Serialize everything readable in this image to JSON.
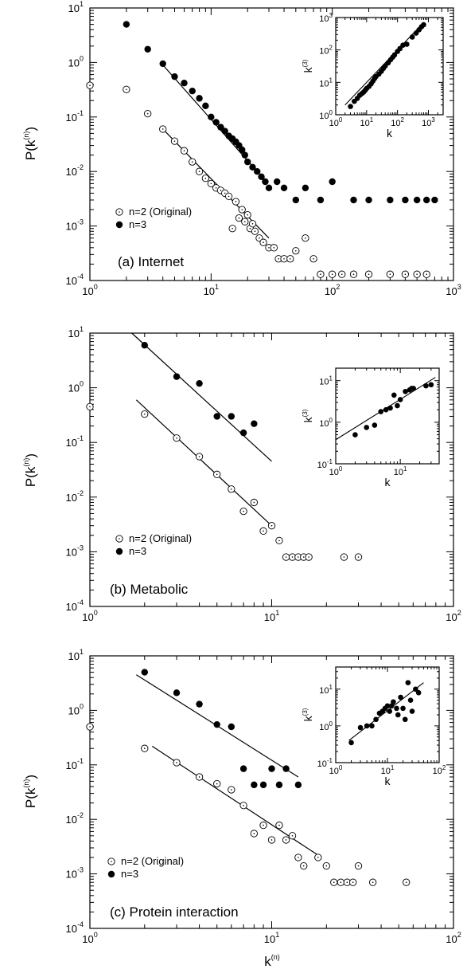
{
  "chart_data": [
    {
      "type": "scatter",
      "title": "(a) Internet",
      "xscale": "log",
      "yscale": "log",
      "xlim": [
        1,
        1000
      ],
      "ylim": [
        0.0001,
        10
      ],
      "xticks": [
        "10^0",
        "10^1",
        "10^2",
        "10^3"
      ],
      "yticks": [
        "10^-4",
        "10^-3",
        "10^-2",
        "10^-1",
        "10^0",
        "10^1"
      ],
      "ylabel": "P(k^(n))",
      "xlabel": "",
      "legend_position": "bottom-left",
      "series": [
        {
          "name": "n=2 (Original)",
          "marker": "open-circle",
          "x": [
            1,
            2,
            3,
            4,
            5,
            6,
            7,
            8,
            9,
            10,
            11,
            12,
            13,
            14,
            15,
            16,
            17,
            18,
            19,
            20,
            21,
            22,
            23,
            25,
            27,
            30,
            33,
            36,
            40,
            45,
            50,
            60,
            70,
            80,
            100,
            120,
            150,
            200,
            300,
            400,
            500,
            600
          ],
          "y": [
            0.38,
            0.32,
            0.115,
            0.06,
            0.036,
            0.024,
            0.015,
            0.01,
            0.0075,
            0.006,
            0.005,
            0.0045,
            0.004,
            0.0035,
            0.0009,
            0.0028,
            0.0014,
            0.002,
            0.0012,
            0.0016,
            0.0009,
            0.0011,
            0.0008,
            0.0006,
            0.0005,
            0.0004,
            0.0004,
            0.00025,
            0.00025,
            0.00025,
            0.00035,
            0.0006,
            0.00025,
            0.00013,
            0.00013,
            0.00013,
            0.00013,
            0.00013,
            0.00013,
            0.00013,
            0.00013,
            0.00013
          ]
        },
        {
          "name": "n=3",
          "marker": "filled-circle",
          "x": [
            2,
            3,
            4,
            5,
            6,
            7,
            8,
            9,
            10,
            11,
            12,
            13,
            14,
            15,
            16,
            17,
            18,
            19,
            20,
            22,
            24,
            26,
            28,
            30,
            35,
            40,
            50,
            60,
            80,
            100,
            150,
            200,
            300,
            400,
            500,
            600,
            700
          ],
          "y": [
            5.0,
            1.75,
            0.95,
            0.55,
            0.42,
            0.3,
            0.22,
            0.16,
            0.1,
            0.08,
            0.065,
            0.055,
            0.045,
            0.04,
            0.035,
            0.03,
            0.025,
            0.02,
            0.015,
            0.012,
            0.01,
            0.008,
            0.0065,
            0.005,
            0.0065,
            0.005,
            0.003,
            0.005,
            0.003,
            0.0065,
            0.003,
            0.003,
            0.003,
            0.003,
            0.003,
            0.003,
            0.003
          ]
        }
      ],
      "fit_lines": [
        {
          "x": [
            4,
            25
          ],
          "y": [
            0.9,
            0.009
          ]
        },
        {
          "x": [
            4,
            30
          ],
          "y": [
            0.06,
            0.0006
          ]
        }
      ],
      "inset": {
        "xscale": "log",
        "yscale": "log",
        "xlim": [
          1,
          3000
        ],
        "ylim": [
          1,
          1000
        ],
        "xticks": [
          "10^0",
          "10^1",
          "10^2",
          "10^3"
        ],
        "yticks": [
          "10^0",
          "10^1",
          "10^2",
          "10^3"
        ],
        "xlabel": "k",
        "ylabel": "k^(3)",
        "points": {
          "x": [
            3,
            4,
            5,
            6,
            7,
            8,
            9,
            10,
            12,
            14,
            16,
            18,
            20,
            25,
            30,
            35,
            40,
            50,
            60,
            70,
            80,
            100,
            120,
            150,
            200,
            300,
            400,
            500,
            600,
            700
          ],
          "y": [
            1.8,
            2.6,
            3.2,
            4,
            4.5,
            5,
            5.7,
            6.5,
            7.5,
            9,
            11,
            13,
            15,
            18,
            22,
            27,
            32,
            40,
            50,
            60,
            70,
            90,
            110,
            140,
            150,
            250,
            330,
            420,
            520,
            600
          ]
        },
        "fit_line": {
          "x": [
            2,
            600
          ],
          "y": [
            2,
            600
          ]
        }
      }
    },
    {
      "type": "scatter",
      "title": "(b) Metabolic",
      "xscale": "log",
      "yscale": "log",
      "xlim": [
        1,
        100
      ],
      "ylim": [
        0.0001,
        10
      ],
      "xticks": [
        "10^0",
        "10^1",
        "10^2"
      ],
      "yticks": [
        "10^-4",
        "10^-3",
        "10^-2",
        "10^-1",
        "10^0",
        "10^1"
      ],
      "ylabel": "P(k^(n))",
      "xlabel": "",
      "legend_position": "bottom-left",
      "series": [
        {
          "name": "n=2 (Original)",
          "marker": "open-circle",
          "x": [
            1,
            2,
            3,
            4,
            5,
            6,
            7,
            8,
            9,
            10,
            11,
            12,
            13,
            14,
            15,
            16,
            25,
            30
          ],
          "y": [
            0.45,
            0.33,
            0.12,
            0.055,
            0.026,
            0.014,
            0.0055,
            0.008,
            0.0024,
            0.003,
            0.0016,
            0.0008,
            0.0008,
            0.0008,
            0.0008,
            0.0008,
            0.0008,
            0.0008
          ]
        },
        {
          "name": "n=3",
          "marker": "filled-circle",
          "x": [
            2,
            3,
            4,
            5,
            6,
            7,
            8
          ],
          "y": [
            6.0,
            1.6,
            1.2,
            0.3,
            0.3,
            0.15,
            0.22
          ]
        }
      ],
      "fit_lines": [
        {
          "x": [
            1.7,
            10
          ],
          "y": [
            10,
            0.045
          ]
        },
        {
          "x": [
            1.8,
            10
          ],
          "y": [
            0.6,
            0.003
          ]
        }
      ],
      "inset": {
        "xscale": "log",
        "yscale": "log",
        "xlim": [
          1,
          40
        ],
        "ylim": [
          0.1,
          20
        ],
        "xticks": [
          "10^0",
          "10^1"
        ],
        "yticks": [
          "10^-1",
          "10^0",
          "10^1"
        ],
        "xlabel": "k",
        "ylabel": "k^(3)",
        "points": {
          "x": [
            2,
            3,
            4,
            5,
            6,
            7,
            8,
            9,
            10,
            12,
            14,
            15,
            16,
            25,
            30
          ],
          "y": [
            0.5,
            0.75,
            0.85,
            1.8,
            2.0,
            2.2,
            4.5,
            2.5,
            3.5,
            5.5,
            6.0,
            6.5,
            6.5,
            7.5,
            8.0
          ]
        },
        "fit_line": {
          "x": [
            1,
            35
          ],
          "y": [
            0.38,
            12
          ]
        }
      }
    },
    {
      "type": "scatter",
      "title": "(c) Protein interaction",
      "xscale": "log",
      "yscale": "log",
      "xlim": [
        1,
        100
      ],
      "ylim": [
        0.0001,
        10
      ],
      "xticks": [
        "10^0",
        "10^1",
        "10^2"
      ],
      "yticks": [
        "10^-4",
        "10^-3",
        "10^-2",
        "10^-1",
        "10^0",
        "10^1"
      ],
      "ylabel": "P(k^(n))",
      "xlabel": "k^(n)",
      "legend_position": "bottom-left",
      "series": [
        {
          "name": "n=2 (Original)",
          "marker": "open-circle",
          "x": [
            1,
            2,
            3,
            4,
            5,
            6,
            7,
            8,
            9,
            10,
            11,
            12,
            13,
            14,
            15,
            18,
            20,
            22,
            24,
            26,
            28,
            30,
            36,
            55
          ],
          "y": [
            0.5,
            0.2,
            0.11,
            0.06,
            0.045,
            0.035,
            0.018,
            0.0055,
            0.0078,
            0.0042,
            0.0078,
            0.0042,
            0.005,
            0.002,
            0.0014,
            0.002,
            0.0014,
            0.0007,
            0.0007,
            0.0007,
            0.0007,
            0.0014,
            0.0007,
            0.0007
          ]
        },
        {
          "name": "n=3",
          "marker": "filled-circle",
          "x": [
            2,
            3,
            4,
            5,
            6,
            7,
            8,
            9,
            10,
            11,
            12,
            14
          ],
          "y": [
            5.0,
            2.1,
            1.3,
            0.55,
            0.5,
            0.085,
            0.043,
            0.043,
            0.085,
            0.043,
            0.085,
            0.043
          ]
        }
      ],
      "fit_lines": [
        {
          "x": [
            1.8,
            14
          ],
          "y": [
            4.5,
            0.06
          ]
        },
        {
          "x": [
            2.2,
            18
          ],
          "y": [
            0.22,
            0.0022
          ]
        }
      ],
      "inset": {
        "xscale": "log",
        "yscale": "log",
        "xlim": [
          1,
          100
        ],
        "ylim": [
          0.1,
          40
        ],
        "xticks": [
          "10^0",
          "10^1",
          "10^2"
        ],
        "yticks": [
          "10^-1",
          "10^0",
          "10^1"
        ],
        "xlabel": "k",
        "ylabel": "k^(3)",
        "points": {
          "x": [
            2,
            3,
            4,
            5,
            6,
            7,
            8,
            9,
            10,
            11,
            12,
            13,
            15,
            16,
            18,
            20,
            22,
            25,
            28,
            30,
            35,
            40
          ],
          "y": [
            0.35,
            0.9,
            1.0,
            1.0,
            1.5,
            2.2,
            2.5,
            3.0,
            3.5,
            2.5,
            3.5,
            4.5,
            3.0,
            2.0,
            6.0,
            3.0,
            1.5,
            15.0,
            5.0,
            2.5,
            10.0,
            8.0
          ]
        },
        "fit_line": {
          "x": [
            1.8,
            50
          ],
          "y": [
            0.4,
            15
          ]
        }
      }
    }
  ]
}
